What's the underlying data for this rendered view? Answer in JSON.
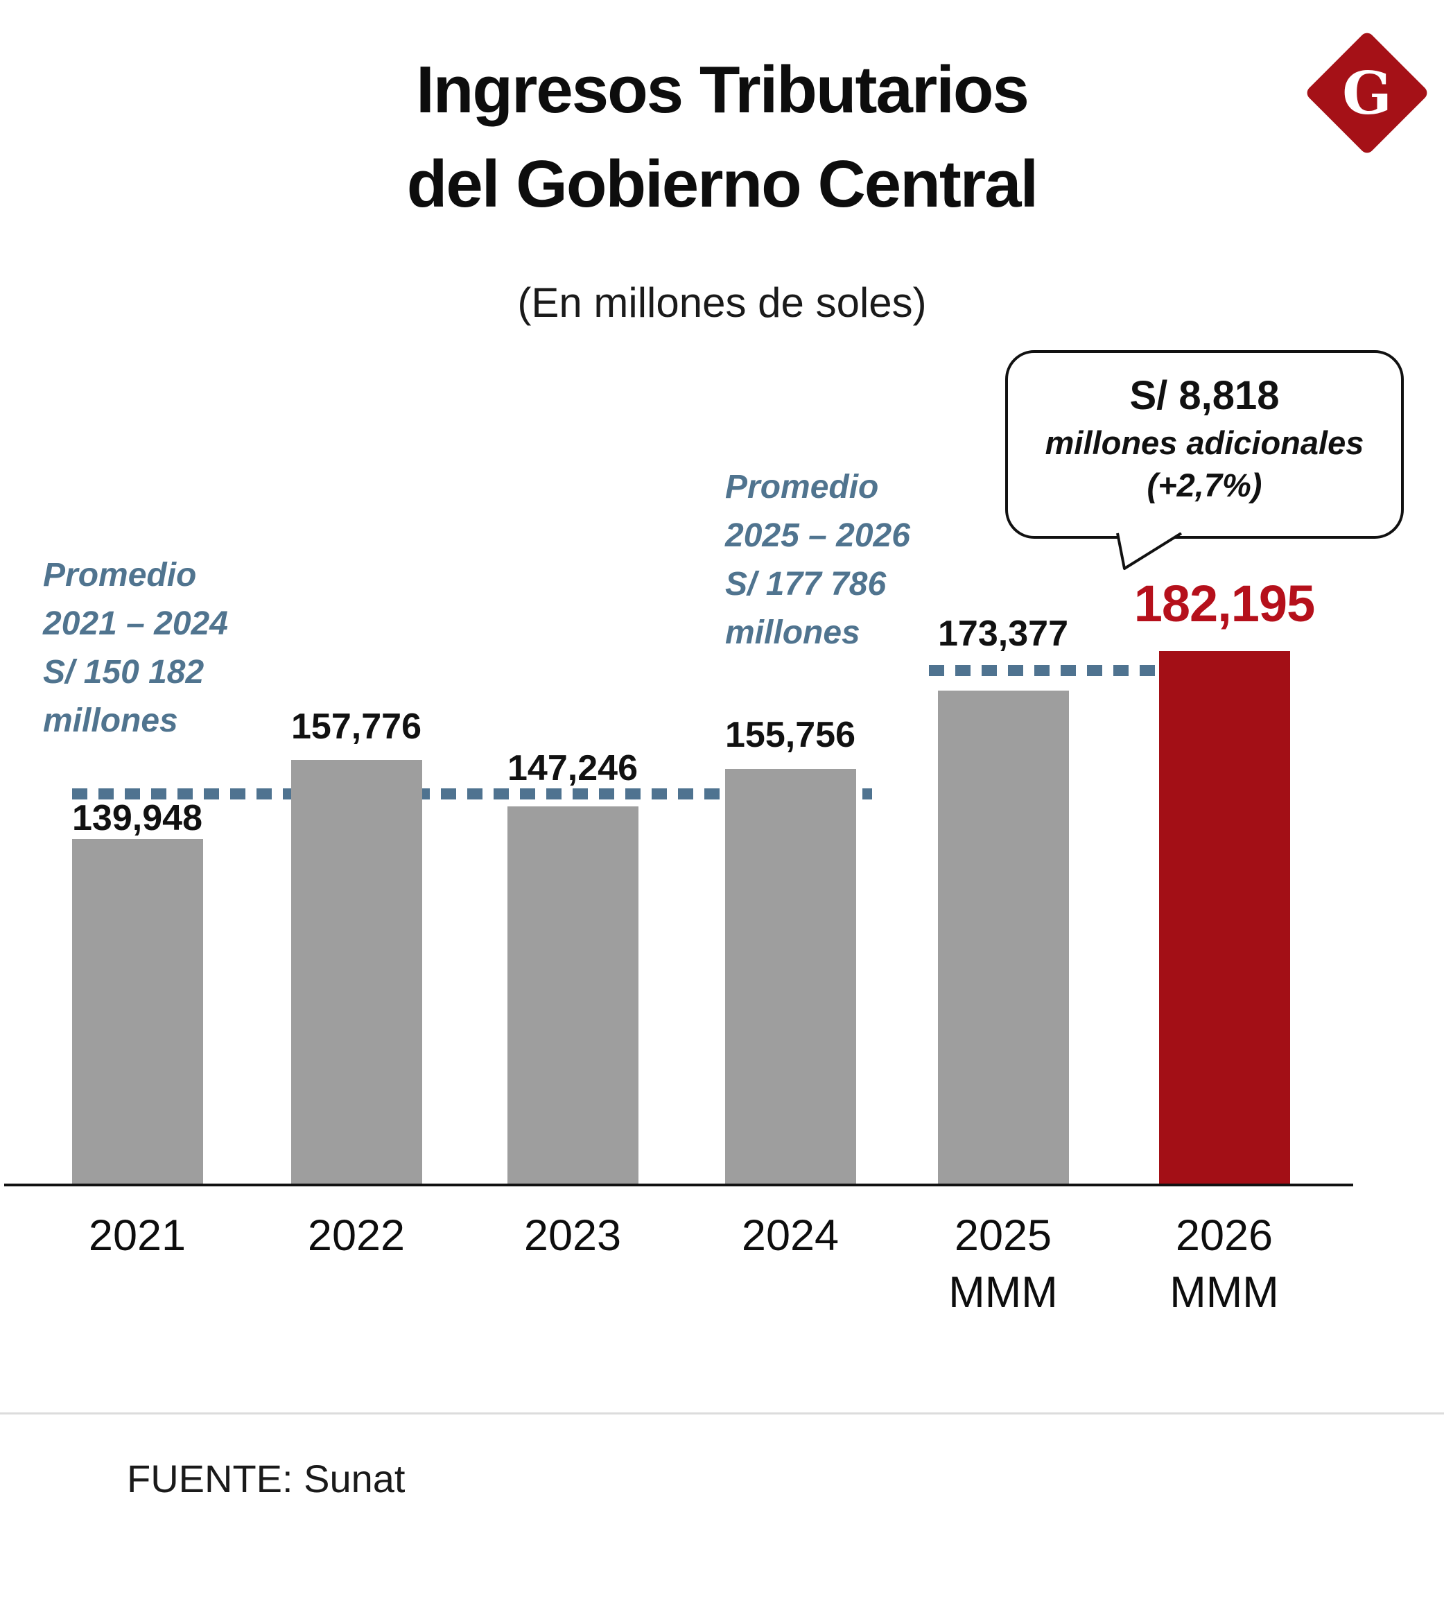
{
  "header": {
    "title_line1": "Ingresos Tributarios",
    "title_line2": "del Gobierno Central",
    "subtitle": "(En millones de soles)"
  },
  "logo": {
    "letter": "G",
    "color": "#a51117"
  },
  "callout": {
    "amount": "S/ 8,818",
    "description": "millones adicionales",
    "percent": "(+2,7%)"
  },
  "annotations": {
    "avg_2021_2024": {
      "lines": [
        "Promedio",
        "2021 – 2024",
        "S/ 150 182",
        "millones"
      ],
      "value": 150182
    },
    "avg_2025_2026": {
      "lines": [
        "Promedio",
        "2025 – 2026",
        "S/ 177 786",
        "millones"
      ],
      "value": 177786
    }
  },
  "chart_data": {
    "type": "bar",
    "title": "Ingresos Tributarios del Gobierno Central",
    "subtitle": "En millones de soles",
    "categories": [
      "2021",
      "2022",
      "2023",
      "2024",
      "2025 MMM",
      "2026 MMM"
    ],
    "values": [
      139948,
      157776,
      147246,
      155756,
      173377,
      182195
    ],
    "value_labels": [
      "139,948",
      "157,776",
      "147,246",
      "155,756",
      "173,377",
      "182,195"
    ],
    "highlight_index": 5,
    "baseline_value": 62300,
    "gridlines": false,
    "legend": false,
    "colors": {
      "bar": "#9e9e9e",
      "highlight_bar": "#a30f16",
      "highlight_label": "#b5101b",
      "reference_line": "#4f7390",
      "annotation_text": "#50748f"
    },
    "reference_lines": [
      {
        "value": 150182,
        "label": "Promedio 2021 – 2024 S/ 150 182 millones",
        "span_categories": [
          "2021",
          "2024"
        ]
      },
      {
        "value": 177786,
        "label": "Promedio 2025 – 2026 S/ 177 786 millones",
        "span_categories": [
          "2025 MMM",
          "2026 MMM"
        ]
      }
    ],
    "annotation": "S/ 8,818 millones adicionales (+2,7%)"
  },
  "axis": {
    "tick_labels": [
      {
        "line1": "2021",
        "line2": ""
      },
      {
        "line1": "2022",
        "line2": ""
      },
      {
        "line1": "2023",
        "line2": ""
      },
      {
        "line1": "2024",
        "line2": ""
      },
      {
        "line1": "2025",
        "line2": "MMM"
      },
      {
        "line1": "2026",
        "line2": "MMM"
      }
    ]
  },
  "footer": {
    "source": "FUENTE: Sunat"
  }
}
